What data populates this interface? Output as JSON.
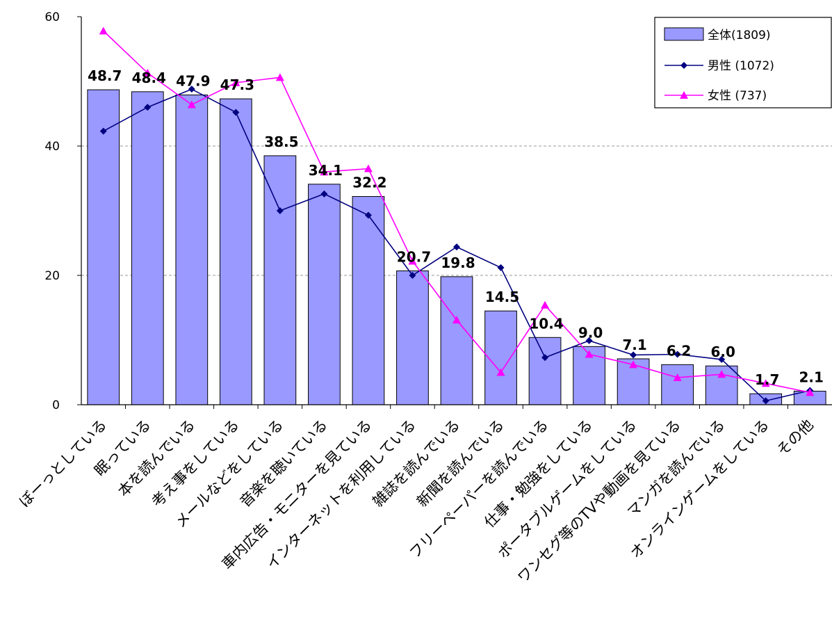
{
  "chart_data": {
    "type": "bar",
    "categories": [
      "ぼーっとしている",
      "眠っている",
      "本を読んでいる",
      "考え事をしている",
      "メールなどをしている",
      "音楽を聴いている",
      "車内広告・モニターを見ている",
      "インターネットを利用している",
      "雑誌を読んでいる",
      "新聞を読んでいる",
      "フリーペーパーを読んでいる",
      "仕事・勉強をしている",
      "ポータブルゲームをしている",
      "ワンセグ等のTVや動画を見ている",
      "マンガを読んでいる",
      "オンラインゲームをしている",
      "その他"
    ],
    "series": [
      {
        "name": "全体(1809)",
        "type": "bar",
        "color": "#9999ff",
        "values": [
          48.7,
          48.4,
          47.9,
          47.3,
          38.5,
          34.1,
          32.2,
          20.7,
          19.8,
          14.5,
          10.4,
          9.0,
          7.1,
          6.2,
          6.0,
          1.7,
          2.1
        ],
        "labels": [
          "48.7",
          "48.4",
          "47.9",
          "47.3",
          "38.5",
          "34.1",
          "32.2",
          "20.7",
          "19.8",
          "14.5",
          "10.4",
          "9.0",
          "7.1",
          "6.2",
          "6.0",
          "1.7",
          "2.1"
        ]
      },
      {
        "name": "男性 (1072)",
        "type": "line",
        "marker": "diamond",
        "color": "#000080",
        "values": [
          42.3,
          46.0,
          48.8,
          45.2,
          30.0,
          32.6,
          29.3,
          20.0,
          24.4,
          21.2,
          7.3,
          9.9,
          7.7,
          7.8,
          7.0,
          0.6,
          2.2
        ]
      },
      {
        "name": "女性 (737)",
        "type": "line",
        "marker": "triangle",
        "color": "#ff00ff",
        "values": [
          57.8,
          51.3,
          46.4,
          49.8,
          50.6,
          36.0,
          36.5,
          22.2,
          13.1,
          5.0,
          15.4,
          7.8,
          6.2,
          4.2,
          4.7,
          3.3,
          1.9
        ]
      }
    ],
    "yticks": [
      "0",
      "20",
      "40",
      "60"
    ],
    "ylim": [
      0,
      60
    ],
    "grid": "horizontal dashed at 20 and 40",
    "legend": "top-right"
  }
}
